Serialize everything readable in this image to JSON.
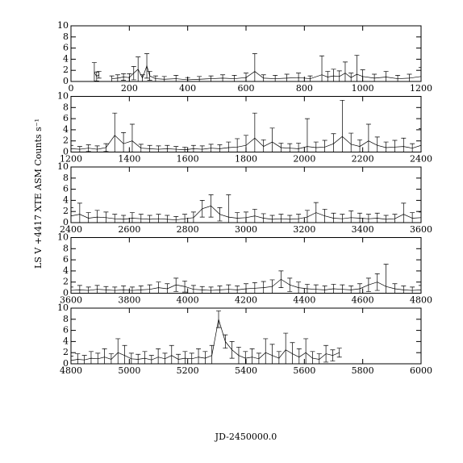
{
  "chart_data": [
    {
      "type": "line",
      "xlim": [
        0,
        1200
      ],
      "ylim": [
        0,
        10
      ],
      "xticks": [
        0,
        200,
        400,
        600,
        800,
        1000,
        1200
      ],
      "yticks": [
        0,
        2,
        4,
        6,
        8,
        10
      ],
      "series": [
        {
          "color": "#000000",
          "x": [
            80,
            88,
            96,
            110,
            140,
            160,
            180,
            200,
            215,
            230,
            245,
            260,
            270,
            290,
            320,
            360,
            400,
            440,
            480,
            520,
            560,
            600,
            630,
            660,
            700,
            740,
            780,
            820,
            860,
            880,
            900,
            920,
            940,
            960,
            980,
            1000,
            1040,
            1080,
            1120,
            1160,
            1200
          ],
          "values": [
            1.6,
            0.9,
            1.2,
            null,
            0.5,
            0.6,
            0.8,
            0.7,
            1.5,
            2.2,
            0.6,
            2.8,
            1.0,
            0.5,
            0.4,
            0.5,
            0.3,
            0.4,
            0.5,
            0.6,
            0.5,
            0.7,
            1.8,
            0.6,
            0.5,
            0.6,
            0.7,
            0.5,
            1.2,
            0.8,
            1.0,
            0.9,
            1.5,
            0.7,
            1.3,
            0.9,
            0.6,
            0.8,
            0.5,
            0.6,
            0.9
          ],
          "errors": [
            1.8,
            0.8,
            0.6,
            null,
            0.5,
            0.6,
            0.6,
            0.7,
            1.2,
            2.2,
            0.6,
            2.2,
            0.8,
            0.5,
            0.5,
            0.6,
            0.4,
            0.5,
            0.5,
            0.6,
            0.6,
            0.8,
            3.2,
            0.6,
            0.6,
            0.7,
            0.8,
            0.5,
            3.4,
            1.0,
            1.2,
            1.0,
            2.0,
            0.8,
            3.4,
            1.2,
            0.7,
            1.0,
            0.6,
            0.7,
            1.6
          ]
        }
      ]
    },
    {
      "type": "line",
      "xlim": [
        1200,
        2400
      ],
      "ylim": [
        0,
        10
      ],
      "xticks": [
        1200,
        1400,
        1600,
        1800,
        2000,
        2200,
        2400
      ],
      "yticks": [
        0,
        2,
        4,
        6,
        8,
        10
      ],
      "series": [
        {
          "color": "#000000",
          "x": [
            1200,
            1230,
            1260,
            1290,
            1320,
            1350,
            1380,
            1410,
            1440,
            1470,
            1500,
            1530,
            1560,
            1590,
            1620,
            1650,
            1680,
            1710,
            1740,
            1770,
            1800,
            1830,
            1860,
            1890,
            1920,
            1950,
            1980,
            2010,
            2040,
            2070,
            2100,
            2130,
            2160,
            2190,
            2220,
            2250,
            2280,
            2310,
            2340,
            2370,
            2400
          ],
          "values": [
            0.6,
            0.5,
            0.7,
            0.5,
            0.8,
            3.0,
            1.5,
            2.0,
            0.7,
            0.6,
            0.5,
            0.6,
            0.5,
            0.4,
            0.6,
            0.5,
            0.7,
            0.6,
            0.8,
            0.9,
            1.2,
            2.5,
            1.0,
            1.8,
            0.8,
            0.7,
            0.6,
            1.0,
            0.8,
            0.9,
            1.5,
            2.8,
            1.4,
            1.0,
            2.0,
            1.2,
            0.8,
            0.9,
            1.0,
            0.7,
            1.2
          ],
          "errors": [
            0.6,
            0.5,
            0.6,
            0.6,
            0.7,
            4.0,
            2.0,
            3.0,
            0.7,
            0.6,
            0.6,
            0.6,
            0.5,
            0.5,
            0.6,
            0.6,
            0.7,
            0.7,
            1.0,
            1.5,
            1.8,
            4.5,
            1.2,
            2.5,
            0.8,
            0.8,
            1.0,
            5.0,
            1.0,
            1.2,
            1.8,
            6.5,
            2.0,
            1.2,
            3.0,
            1.5,
            1.0,
            1.2,
            1.5,
            0.8,
            3.0
          ]
        }
      ]
    },
    {
      "type": "line",
      "xlim": [
        2400,
        3600
      ],
      "ylim": [
        0,
        10
      ],
      "xticks": [
        2400,
        2600,
        2800,
        3000,
        3200,
        3400,
        3600
      ],
      "yticks": [
        0,
        2,
        4,
        6,
        8,
        10
      ],
      "y_label": "LS V +4417 XTE ASM Counts s⁻¹",
      "series": [
        {
          "color": "#000000",
          "x": [
            2400,
            2430,
            2460,
            2490,
            2520,
            2550,
            2580,
            2610,
            2640,
            2670,
            2700,
            2730,
            2760,
            2790,
            2820,
            2850,
            2880,
            2910,
            2940,
            2970,
            3000,
            3030,
            3060,
            3090,
            3120,
            3150,
            3180,
            3210,
            3240,
            3270,
            3300,
            3330,
            3360,
            3390,
            3420,
            3450,
            3480,
            3510,
            3540,
            3570,
            3600
          ],
          "values": [
            1.2,
            1.5,
            0.8,
            1.0,
            0.9,
            0.7,
            0.6,
            0.8,
            0.7,
            0.6,
            0.7,
            0.6,
            0.5,
            0.7,
            0.9,
            2.5,
            3.0,
            1.5,
            1.0,
            0.8,
            0.9,
            1.2,
            0.8,
            0.6,
            0.7,
            0.6,
            0.7,
            1.0,
            1.8,
            1.2,
            0.8,
            0.7,
            0.9,
            0.8,
            0.7,
            0.8,
            0.6,
            0.7,
            1.5,
            0.8,
            0.9
          ],
          "errors": [
            1.5,
            2.0,
            1.0,
            1.2,
            1.0,
            0.8,
            0.7,
            1.0,
            0.8,
            0.7,
            0.8,
            0.7,
            0.6,
            0.8,
            1.0,
            1.5,
            2.0,
            1.2,
            4.0,
            1.0,
            1.0,
            1.2,
            0.8,
            0.7,
            0.8,
            0.7,
            0.8,
            1.2,
            1.8,
            1.2,
            0.9,
            0.8,
            1.2,
            0.9,
            0.8,
            0.9,
            0.7,
            0.8,
            2.0,
            1.0,
            1.0
          ]
        }
      ]
    },
    {
      "type": "line",
      "xlim": [
        3600,
        4800
      ],
      "ylim": [
        0,
        10
      ],
      "xticks": [
        3600,
        3800,
        4000,
        4200,
        4400,
        4600,
        4800
      ],
      "yticks": [
        0,
        2,
        4,
        6,
        8,
        10
      ],
      "series": [
        {
          "color": "#000000",
          "x": [
            3600,
            3630,
            3660,
            3690,
            3720,
            3750,
            3780,
            3810,
            3840,
            3870,
            3900,
            3930,
            3960,
            3990,
            4020,
            4050,
            4080,
            4110,
            4140,
            4170,
            4200,
            4230,
            4260,
            4290,
            4320,
            4350,
            4380,
            4410,
            4440,
            4470,
            4500,
            4530,
            4560,
            4590,
            4620,
            4650,
            4680,
            4710,
            4740,
            4770,
            4800
          ],
          "values": [
            0.5,
            0.6,
            0.5,
            0.7,
            0.6,
            0.5,
            0.6,
            0.5,
            0.6,
            0.7,
            1.0,
            0.8,
            1.5,
            1.2,
            0.7,
            0.6,
            0.5,
            0.6,
            0.7,
            0.6,
            0.8,
            0.9,
            1.0,
            1.2,
            2.5,
            1.5,
            1.0,
            0.8,
            0.7,
            0.6,
            0.8,
            0.7,
            0.6,
            0.8,
            1.5,
            2.0,
            1.2,
            0.8,
            0.6,
            0.5,
            0.6
          ],
          "errors": [
            0.6,
            0.8,
            0.6,
            0.7,
            0.6,
            0.6,
            0.7,
            0.6,
            0.7,
            0.8,
            1.0,
            0.9,
            1.2,
            1.0,
            0.7,
            0.6,
            0.6,
            0.7,
            0.8,
            0.7,
            0.9,
            1.0,
            1.1,
            1.2,
            1.5,
            1.2,
            1.0,
            0.8,
            0.8,
            0.7,
            0.8,
            0.8,
            0.7,
            0.9,
            1.2,
            1.5,
            4.0,
            0.9,
            0.7,
            0.6,
            0.8
          ]
        }
      ]
    },
    {
      "type": "line",
      "xlim": [
        4800,
        6000
      ],
      "ylim": [
        0,
        10
      ],
      "xticks": [
        4800,
        5000,
        5200,
        5400,
        5600,
        5800,
        6000
      ],
      "yticks": [
        0,
        2,
        4,
        6,
        8,
        10
      ],
      "x_label": "JD-2450000.0",
      "series": [
        {
          "color": "#000000",
          "x": [
            4800,
            4823,
            4846,
            4869,
            4892,
            4915,
            4938,
            4961,
            4984,
            5007,
            5030,
            5053,
            5076,
            5099,
            5122,
            5145,
            5168,
            5191,
            5214,
            5237,
            5260,
            5283,
            5306,
            5329,
            5352,
            5375,
            5398,
            5421,
            5444,
            5467,
            5490,
            5513,
            5536,
            5559,
            5582,
            5605,
            5628,
            5651,
            5674,
            5697,
            5720
          ],
          "values": [
            0.6,
            0.8,
            0.7,
            1.0,
            0.9,
            1.2,
            0.8,
            2.0,
            1.5,
            0.9,
            0.8,
            1.0,
            0.7,
            1.2,
            0.9,
            1.5,
            0.8,
            1.0,
            0.9,
            1.2,
            1.0,
            1.5,
            8.0,
            4.0,
            2.5,
            1.5,
            1.0,
            1.2,
            0.9,
            2.0,
            1.5,
            1.0,
            2.5,
            1.8,
            1.2,
            2.0,
            1.0,
            0.8,
            1.8,
            1.5,
            2.0
          ],
          "errors": [
            0.8,
            1.0,
            0.8,
            1.2,
            1.0,
            1.5,
            1.0,
            2.5,
            1.8,
            1.0,
            0.9,
            1.2,
            0.8,
            1.5,
            1.0,
            1.8,
            0.9,
            1.2,
            1.0,
            1.5,
            1.2,
            1.8,
            1.5,
            1.2,
            1.5,
            1.5,
            1.2,
            1.5,
            1.0,
            2.5,
            2.0,
            1.2,
            3.0,
            2.0,
            1.5,
            2.5,
            1.2,
            1.0,
            1.5,
            1.0,
            0.8
          ]
        }
      ]
    }
  ]
}
